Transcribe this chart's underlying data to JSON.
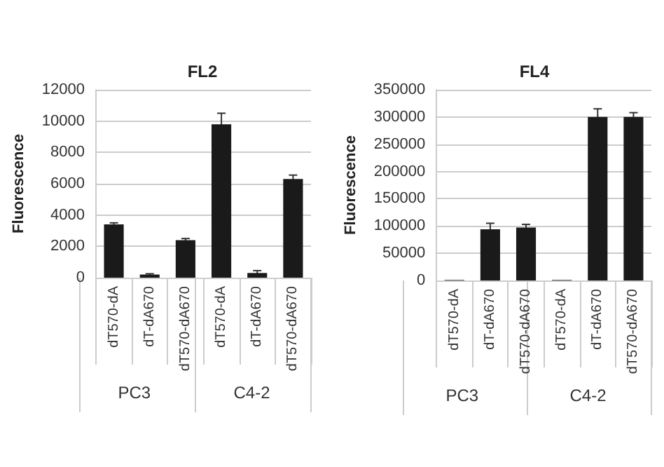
{
  "chart_data": [
    {
      "type": "bar",
      "title": "FL2",
      "ylabel": "Fluorescence",
      "categories": [
        "dT570-dA",
        "dT-dA670",
        "dT570-dA670",
        "dT570-dA",
        "dT-dA670",
        "dT570-dA670"
      ],
      "values": [
        3400,
        200,
        2400,
        9800,
        300,
        6300
      ],
      "errors": [
        100,
        50,
        100,
        700,
        150,
        250
      ],
      "color": "#1a1a1a",
      "ylim": [
        0,
        12000
      ],
      "yticks": [
        0,
        2000,
        4000,
        6000,
        8000,
        10000,
        12000
      ],
      "grid": "y",
      "annotations": [
        "PC3",
        "C4-2"
      ]
    },
    {
      "type": "bar",
      "title": "FL4",
      "ylabel": "Fluorescence",
      "categories": [
        "dT570-dA",
        "dT-dA670",
        "dT570-dA670",
        "dT570-dA",
        "dT-dA670",
        "dT570-dA670"
      ],
      "values": [
        1000,
        94000,
        97000,
        1000,
        300000,
        300000
      ],
      "errors": [
        null,
        11000,
        6000,
        null,
        15000,
        8000
      ],
      "color": "#1a1a1a",
      "ylim": [
        0,
        350000
      ],
      "yticks": [
        0,
        50000,
        100000,
        150000,
        200000,
        250000,
        300000,
        350000
      ],
      "grid": "y",
      "annotations": [
        "PC3",
        "C4-2"
      ]
    }
  ]
}
